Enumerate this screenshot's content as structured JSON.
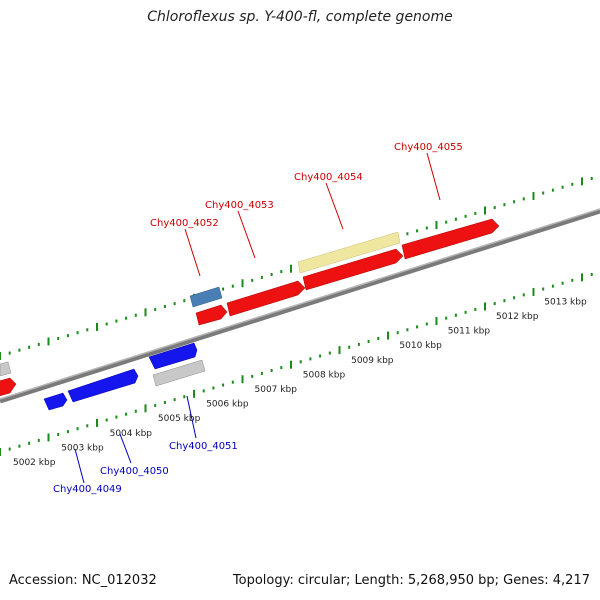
{
  "title": "Chloroflexus sp. Y-400-fl, complete genome",
  "footer": {
    "accession": "Accession: NC_012032",
    "summary": "Topology: circular; Length: 5,268,950 bp; Genes: 4,217"
  },
  "colors": {
    "forward_gene": "#ee1111",
    "reverse_gene": "#1515ee",
    "rna_gene": "#4a7fb5",
    "pseudo_gene": "#efe7a0",
    "other_gene": "#c8c8c8",
    "backbone": "#8a8a8a",
    "ruler": "#1a8a1a",
    "forward_label": "#cc0000",
    "reverse_label": "#0000bb"
  },
  "ruler_labels": [
    "5002 kbp",
    "5003 kbp",
    "5004 kbp",
    "5005 kbp",
    "5006 kbp",
    "5007 kbp",
    "5008 kbp",
    "5009 kbp",
    "5010 kbp",
    "5011 kbp",
    "5012 kbp",
    "5013 kbp"
  ],
  "gene_labels": {
    "forward": [
      "Chy400_4052",
      "Chy400_4053",
      "Chy400_4054",
      "Chy400_4055"
    ],
    "reverse": [
      "Chy400_4049",
      "Chy400_4050",
      "Chy400_4051"
    ]
  }
}
